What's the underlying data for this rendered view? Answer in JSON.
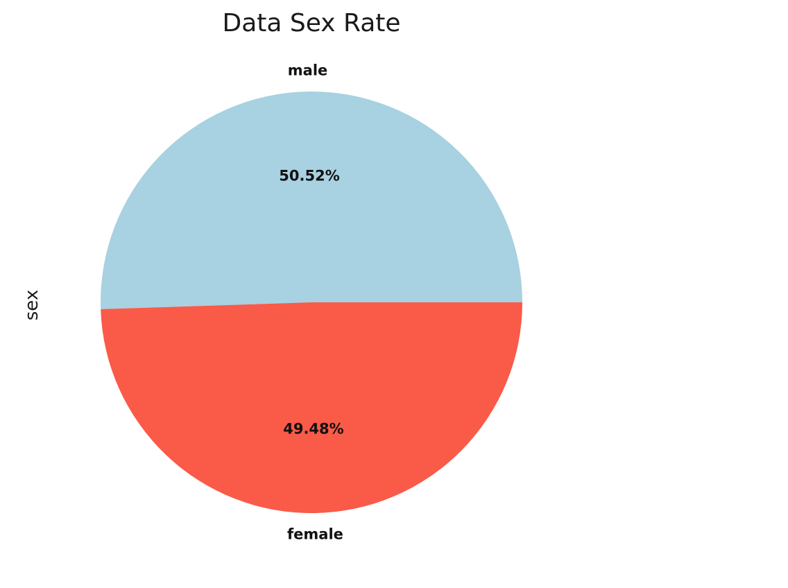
{
  "chart_data": {
    "type": "pie",
    "title": "Data Sex Rate",
    "ylabel": "sex",
    "slices": [
      {
        "label": "male",
        "value": 50.52,
        "pct_label": "50.52%",
        "color": "#a8d1e1"
      },
      {
        "label": "female",
        "value": 49.48,
        "pct_label": "49.48%",
        "color": "#fa5a48"
      }
    ],
    "start_angle_deg": 0,
    "direction": "counterclockwise"
  }
}
